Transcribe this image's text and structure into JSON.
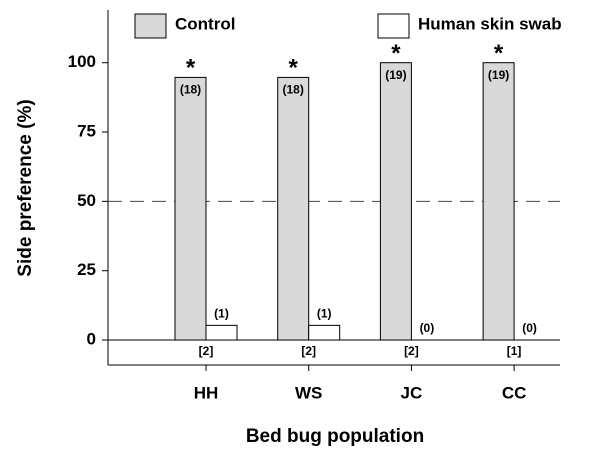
{
  "chart_data": {
    "type": "bar",
    "x_label": "Bed bug population",
    "y_label": "Side preference (%)",
    "categories": [
      "HH",
      "WS",
      "JC",
      "CC"
    ],
    "series": [
      {
        "name": "Control",
        "color": "#d9d9d9",
        "values": [
          94.7,
          94.7,
          100,
          100
        ],
        "count_labels": [
          "(18)",
          "(18)",
          "(19)",
          "(19)"
        ],
        "significance": [
          "*",
          "*",
          "*",
          "*"
        ]
      },
      {
        "name": "Human skin swab",
        "color": "#ffffff",
        "values": [
          5.3,
          5.3,
          0,
          0
        ],
        "count_labels": [
          "(1)",
          "(1)",
          "(0)",
          "(0)"
        ]
      }
    ],
    "sample_labels": [
      "[2]",
      "[2]",
      "[2]",
      "[1]"
    ],
    "reference_line": 50,
    "ylim": [
      -9,
      119
    ],
    "yticks": [
      0,
      25,
      50,
      75,
      100
    ]
  }
}
